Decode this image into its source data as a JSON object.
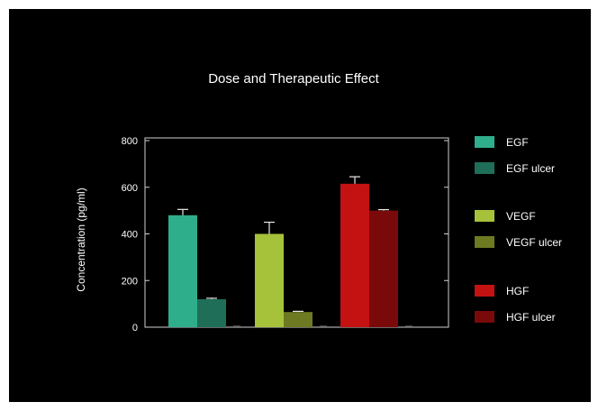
{
  "chart_data": {
    "type": "bar",
    "title": "Dose and Therapeutic Effect",
    "xlabel": "",
    "ylabel": "Concentration (pg/ml)",
    "ylim": [
      0,
      800
    ],
    "yticks": [
      "0",
      "200",
      "400",
      "600",
      "800"
    ],
    "grid": false,
    "legend_position": "right",
    "groups": [
      {
        "bars": [
          {
            "name": "EGF",
            "value": 480,
            "error": 25,
            "color": "#2fae8c"
          },
          {
            "name": "EGF ulcer",
            "value": 120,
            "error": 4,
            "color": "#1e6e58"
          }
        ]
      },
      {
        "bars": [
          {
            "name": "VEGF",
            "value": 400,
            "error": 50,
            "color": "#a6c23a"
          },
          {
            "name": "VEGF ulcer",
            "value": 65,
            "error": 3,
            "color": "#6e7a22"
          }
        ]
      },
      {
        "bars": [
          {
            "name": "HGF",
            "value": 615,
            "error": 30,
            "color": "#c41212"
          },
          {
            "name": "HGF ulcer",
            "value": 500,
            "error": 4,
            "color": "#7a0a0a"
          }
        ]
      }
    ],
    "legend": [
      {
        "label": "EGF",
        "color": "#2fae8c"
      },
      {
        "label": "EGF ulcer",
        "color": "#1e6e58"
      },
      {
        "label": "VEGF",
        "color": "#a6c23a"
      },
      {
        "label": "VEGF ulcer",
        "color": "#6e7a22"
      },
      {
        "label": "HGF",
        "color": "#c41212"
      },
      {
        "label": "HGF ulcer",
        "color": "#7a0a0a"
      }
    ]
  }
}
